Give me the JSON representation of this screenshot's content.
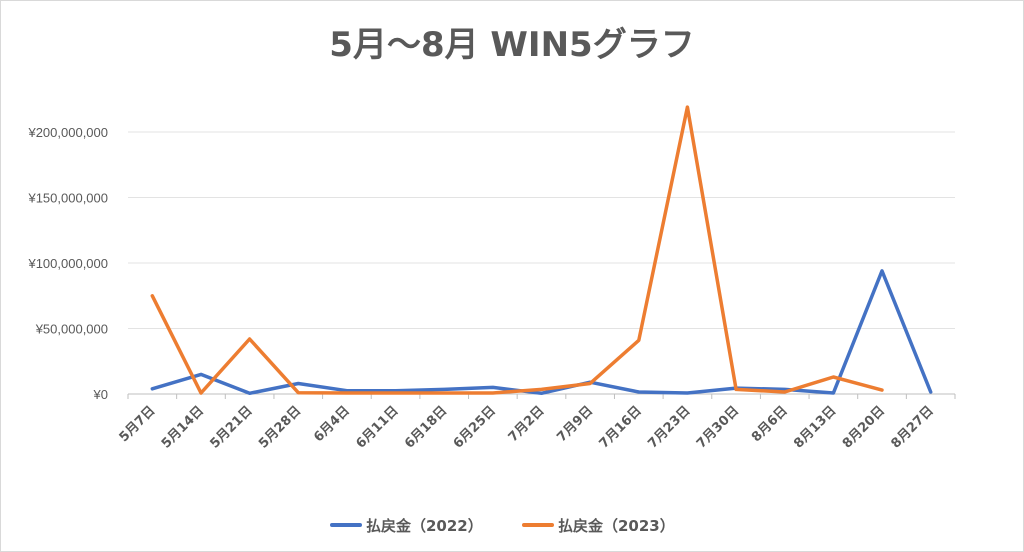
{
  "chart_data": {
    "type": "line",
    "title": "5月～8月 WIN5グラフ",
    "categories": [
      "5月7日",
      "5月14日",
      "5月21日",
      "5月28日",
      "6月4日",
      "6月11日",
      "6月18日",
      "6月25日",
      "7月2日",
      "7月9日",
      "7月16日",
      "7月23日",
      "7月30日",
      "8月6日",
      "8月13日",
      "8月20日",
      "8月27日"
    ],
    "ylim": [
      0,
      200000000
    ],
    "yticks": [
      0,
      50000000,
      100000000,
      150000000,
      200000000
    ],
    "ytick_labels": [
      "¥0",
      "¥50,000,000",
      "¥100,000,000",
      "¥150,000,000",
      "¥200,000,000"
    ],
    "grid": true,
    "legend_position": "bottom",
    "series": [
      {
        "name": "払戻金（2022）",
        "color": "#4472c4",
        "values": [
          4000000,
          15000000,
          500000,
          8000000,
          2500000,
          2500000,
          3500000,
          5000000,
          500000,
          9000000,
          1500000,
          800000,
          4500000,
          3500000,
          800000,
          94000000,
          1500000
        ]
      },
      {
        "name": "払戻金（2023）",
        "color": "#ed7d31",
        "values": [
          75000000,
          800000,
          42000000,
          1000000,
          800000,
          800000,
          800000,
          800000,
          3500000,
          8000000,
          41000000,
          219000000,
          3500000,
          1500000,
          13000000,
          3000000,
          null
        ]
      }
    ]
  }
}
